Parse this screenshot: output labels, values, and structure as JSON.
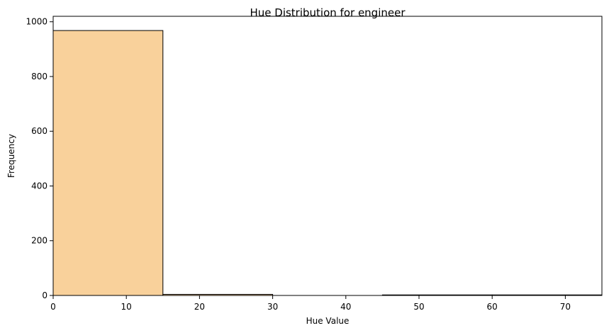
{
  "chart_data": {
    "type": "bar",
    "title": "Hue Distribution for engineer",
    "xlabel": "Hue Value",
    "ylabel": "Frequency",
    "xlim": [
      0,
      75
    ],
    "ylim": [
      0,
      1020
    ],
    "bins": [
      {
        "x0": 0,
        "x1": 15,
        "value": 968
      },
      {
        "x0": 15,
        "x1": 30,
        "value": 4
      },
      {
        "x0": 30,
        "x1": 45,
        "value": 0
      },
      {
        "x0": 45,
        "x1": 60,
        "value": 2
      },
      {
        "x0": 60,
        "x1": 75,
        "value": 2
      }
    ],
    "xticks": [
      0,
      10,
      20,
      30,
      40,
      50,
      60,
      70
    ],
    "yticks": [
      0,
      200,
      400,
      600,
      800,
      1000
    ],
    "bar_color": "#f9d19b",
    "edge_color": "#000000",
    "grid": false,
    "legend": null
  }
}
